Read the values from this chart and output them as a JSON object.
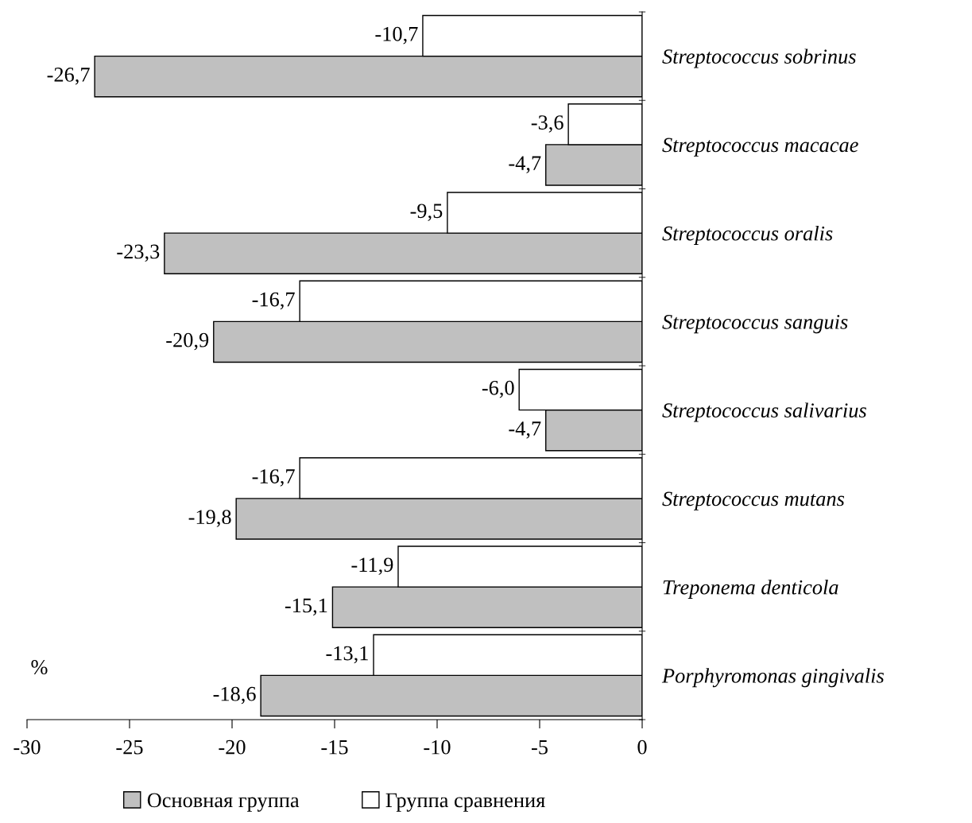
{
  "chart_data": {
    "type": "bar",
    "orientation": "horizontal",
    "categories": [
      "Streptococcus sobrinus",
      "Streptococcus macacae",
      "Streptococcus oralis",
      "Streptococcus sanguis",
      "Streptococcus salivarius",
      "Streptococcus mutans",
      "Treponema denticola",
      "Porphyromonas gingivalis"
    ],
    "series": [
      {
        "name": "Основная группа",
        "color": "#c0c0c0",
        "values": [
          -26.7,
          -4.7,
          -23.3,
          -20.9,
          -4.7,
          -19.8,
          -15.1,
          -18.6
        ],
        "value_labels": [
          "-26,7",
          "-4,7",
          "-23,3",
          "-20,9",
          "-4,7",
          "-19,8",
          "-15,1",
          "-18,6"
        ]
      },
      {
        "name": "Группа сравнения",
        "color": "#ffffff",
        "values": [
          -10.7,
          -3.6,
          -9.5,
          -16.7,
          -6.0,
          -16.7,
          -11.9,
          -13.1
        ],
        "value_labels": [
          "-10,7",
          "-3,6",
          "-9,5",
          "-16,7",
          "-6,0",
          "-16,7",
          "-11,9",
          "-13,1"
        ]
      }
    ],
    "xlabel": "%",
    "xlim": [
      -30,
      0
    ],
    "xticks": [
      -30,
      -25,
      -20,
      -15,
      -10,
      -5,
      0
    ],
    "legend": "bottom"
  }
}
